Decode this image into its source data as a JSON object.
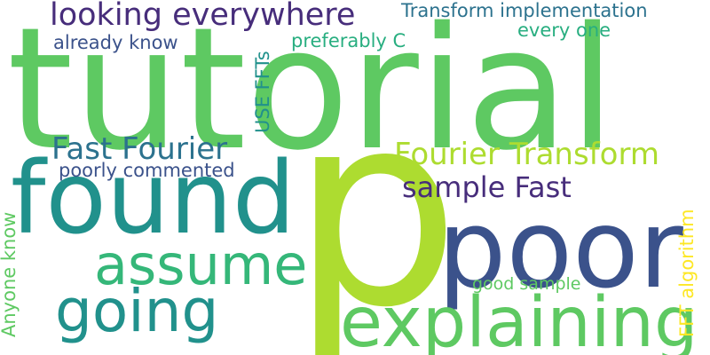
{
  "words": {
    "tutorial": {
      "text": "tutorial",
      "color": "#5ec962"
    },
    "p": {
      "text": "p",
      "color": "#addc30"
    },
    "found": {
      "text": "found",
      "color": "#21918c"
    },
    "poor": {
      "text": "poor",
      "color": "#3b528b"
    },
    "explaining": {
      "text": "explaining",
      "color": "#5ec962"
    },
    "assume": {
      "text": "assume",
      "color": "#35b779"
    },
    "going": {
      "text": "going",
      "color": "#21918c"
    },
    "looking_everywhere": {
      "text": "looking everywhere",
      "color": "#472d7b"
    },
    "transform_implementation": {
      "text": "Transform implementation",
      "color": "#2c728e"
    },
    "already_know": {
      "text": "already know",
      "color": "#3b528b"
    },
    "preferably_c": {
      "text": "preferably C",
      "color": "#28ae80"
    },
    "every_one": {
      "text": "every one",
      "color": "#28ae80"
    },
    "fast_fourier": {
      "text": "Fast Fourier",
      "color": "#2c728e"
    },
    "fourier_transform": {
      "text": "Fourier Transform",
      "color": "#addc30"
    },
    "poorly_commented": {
      "text": "poorly commented",
      "color": "#3b528b"
    },
    "sample_fast": {
      "text": "sample Fast",
      "color": "#472d7b"
    },
    "use_ffts": {
      "text": "USE FFTs",
      "color": "#21918c"
    },
    "anyone_know": {
      "text": "Anyone know",
      "color": "#5ec962"
    },
    "good_sample": {
      "text": "good sample",
      "color": "#5ec962"
    },
    "fft_algorithm": {
      "text": "FFT algorithm",
      "color": "#fde725"
    }
  }
}
